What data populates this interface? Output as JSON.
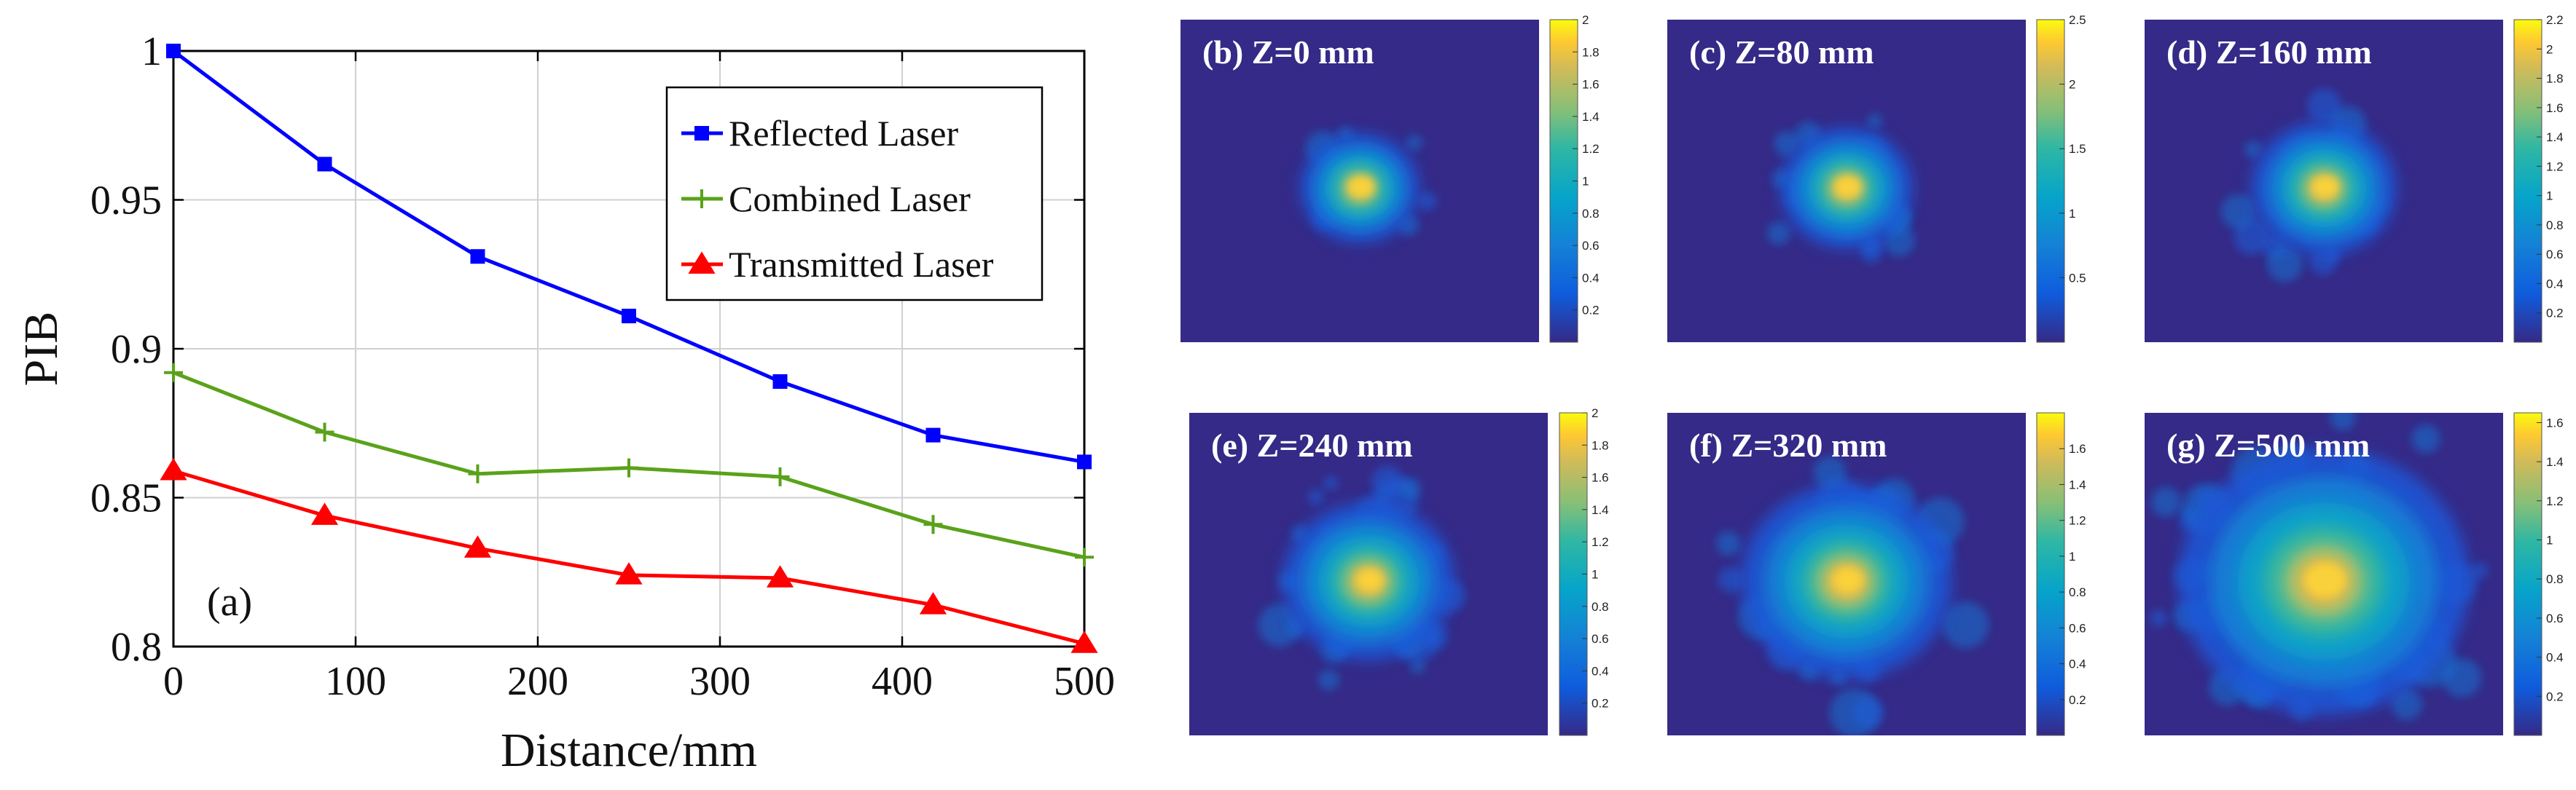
{
  "chart_data": [
    {
      "type": "line",
      "panel_label": "(a)",
      "title": "",
      "xlabel": "Distance/mm",
      "ylabel": "PIB",
      "xlim": [
        0,
        500
      ],
      "ylim": [
        0.8,
        1.0
      ],
      "x_ticks": [
        "0",
        "100",
        "200",
        "300",
        "400",
        "500"
      ],
      "y_ticks": [
        "0.8",
        "0.85",
        "0.9",
        "0.95",
        "1"
      ],
      "grid": true,
      "legend_position": "top-right",
      "x": [
        0,
        83,
        167,
        250,
        333,
        417,
        500
      ],
      "series": [
        {
          "name": "Reflected Laser",
          "color": "#0000ff",
          "marker": "square",
          "values": [
            1.0,
            0.962,
            0.931,
            0.911,
            0.889,
            0.871,
            0.862
          ]
        },
        {
          "name": "Combined Laser",
          "color": "#5aa21a",
          "marker": "plus",
          "values": [
            0.892,
            0.872,
            0.858,
            0.86,
            0.857,
            0.841,
            0.83
          ]
        },
        {
          "name": "Transmitted Laser",
          "color": "#ff0000",
          "marker": "triangle",
          "values": [
            0.859,
            0.844,
            0.833,
            0.824,
            0.823,
            0.814,
            0.801
          ]
        }
      ]
    },
    {
      "type": "heatmap",
      "panels": [
        {
          "label": "(b) Z=0 mm",
          "max": 2.0,
          "spread": 0.09,
          "noise": 0.01,
          "colorbar_ticks": [
            "2",
            "1.8",
            "1.6",
            "1.4",
            "1.2",
            "1",
            "0.8",
            "0.6",
            "0.4",
            "0.2"
          ]
        },
        {
          "label": "(c) Z=80 mm",
          "max": 2.5,
          "spread": 0.1,
          "noise": 0.05,
          "colorbar_ticks": [
            "2.5",
            "2",
            "1.5",
            "1",
            "0.5"
          ]
        },
        {
          "label": "(d) Z=160 mm",
          "max": 2.2,
          "spread": 0.11,
          "noise": 0.1,
          "colorbar_ticks": [
            "2.2",
            "2",
            "1.8",
            "1.6",
            "1.4",
            "1.2",
            "1",
            "0.8",
            "0.6",
            "0.4",
            "0.2"
          ]
        },
        {
          "label": "(e) Z=240 mm",
          "max": 2.0,
          "spread": 0.13,
          "noise": 0.18,
          "colorbar_ticks": [
            "2",
            "1.8",
            "1.6",
            "1.4",
            "1.2",
            "1",
            "0.8",
            "0.6",
            "0.4",
            "0.2"
          ]
        },
        {
          "label": "(f) Z=320 mm",
          "max": 1.8,
          "spread": 0.16,
          "noise": 0.26,
          "colorbar_ticks": [
            "1.6",
            "1.4",
            "1.2",
            "1",
            "0.8",
            "0.6",
            "0.4",
            "0.2"
          ]
        },
        {
          "label": "(g) Z=500 mm",
          "max": 1.65,
          "spread": 0.22,
          "noise": 0.34,
          "colorbar_ticks": [
            "1.6",
            "1.4",
            "1.2",
            "1",
            "0.8",
            "0.6",
            "0.4",
            "0.2"
          ]
        }
      ]
    }
  ]
}
